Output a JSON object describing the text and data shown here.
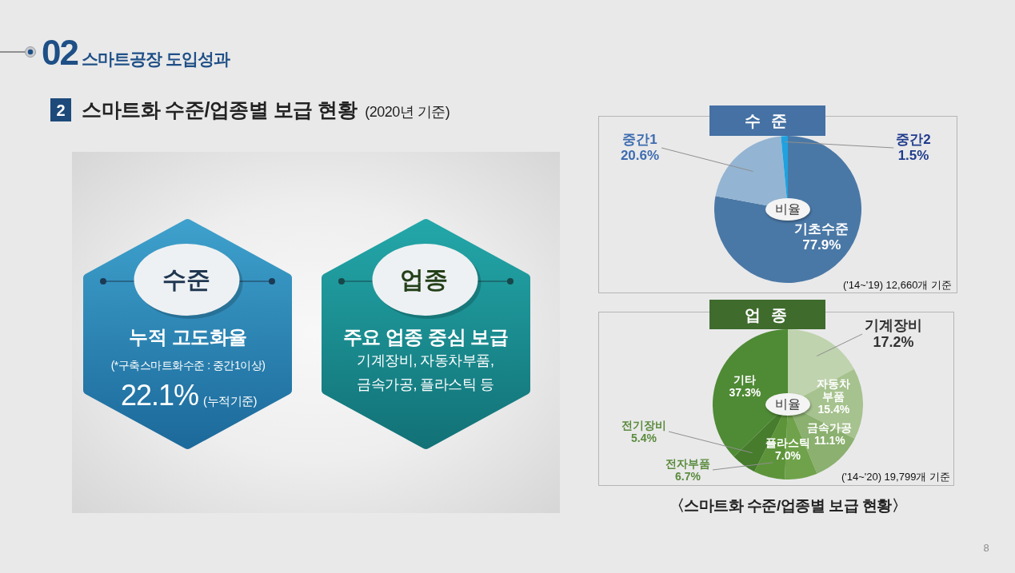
{
  "chart_data": [
    {
      "type": "other",
      "title": "스마트공장 도입성과",
      "subtitle": "스마트화 수준/업종별 보급 현황",
      "annotations": [
        "02",
        "2",
        "(2020년 기준)",
        "수준",
        "누적 고도화율",
        "(*구축스마트화수준 : 중간1이상)",
        "22.1%",
        "(누적기준)",
        "업종",
        "주요 업종 중심 보급",
        "기계장비, 자동차부품, 금속가공, 플라스틱 등",
        "8"
      ]
    },
    {
      "type": "pie",
      "title": "수 준",
      "categories": [
        "기초수준",
        "중간1",
        "중간2"
      ],
      "values": [
        77.9,
        20.6,
        1.5
      ],
      "colors": [
        "#4a78a6",
        "#93b4d3",
        "#1fa2df"
      ],
      "value_labels": [
        "77.9%",
        "20.6%",
        "1.5%"
      ],
      "annotations": [
        "비율",
        "('14~'19) 12,660개 기준"
      ]
    },
    {
      "type": "pie",
      "title": "업 종",
      "categories": [
        "기계장비",
        "자동차 부품",
        "금속가공",
        "플라스틱",
        "전자부품",
        "전기장비",
        "기타"
      ],
      "values": [
        17.2,
        15.4,
        11.1,
        7.0,
        6.7,
        5.4,
        37.3
      ],
      "colors": [
        "#bfd3ae",
        "#a6c28e",
        "#8bb06f",
        "#6fa24a",
        "#5d943a",
        "#467c2c",
        "#4f8a35"
      ],
      "value_labels": [
        "17.2%",
        "15.4%",
        "11.1%",
        "7.0%",
        "6.7%",
        "5.4%",
        "37.3%"
      ],
      "annotations": [
        "비율",
        "('14~'20) 19,799개 기준",
        "〈스마트화 수준/업종별 보급 현황〉"
      ]
    }
  ]
}
